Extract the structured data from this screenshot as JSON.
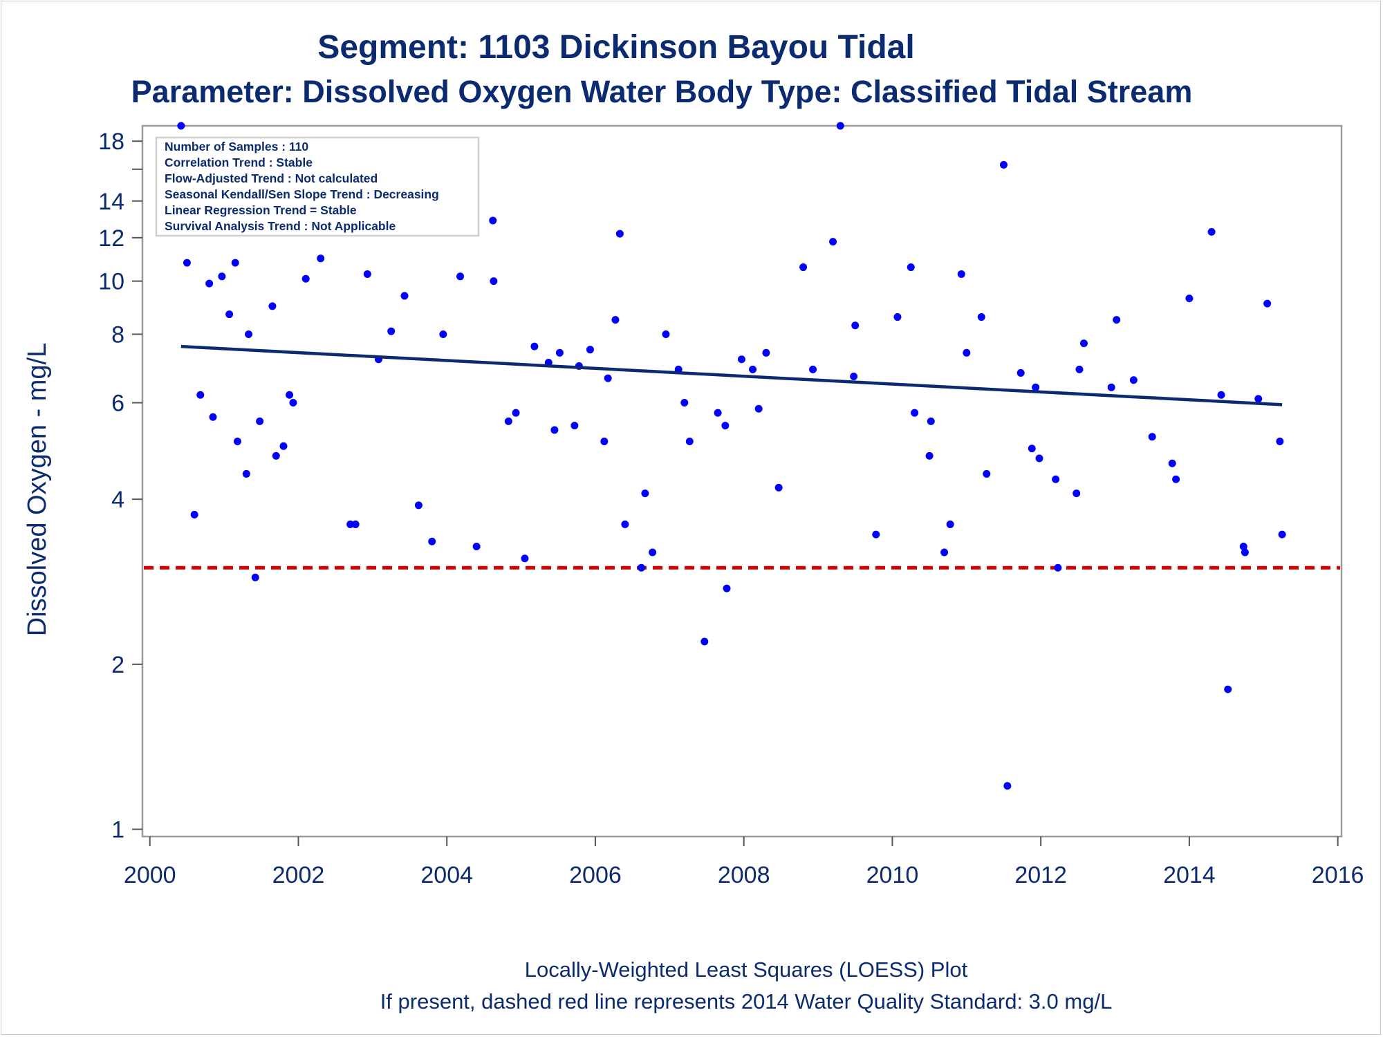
{
  "chart_data": {
    "type": "scatter",
    "title": "Segment: 1103  Dickinson Bayou Tidal",
    "subtitle": "Parameter: Dissolved Oxygen   Water Body Type: Classified Tidal Stream",
    "xlabel": "",
    "ylabel": "Dissolved Oxygen - mg/L",
    "footnotes": [
      "Locally-Weighted Least Squares (LOESS) Plot",
      "If present, dashed red line represents 2014 Water Quality Standard: 3.0 mg/L"
    ],
    "x_ticks": [
      2000,
      2002,
      2004,
      2006,
      2008,
      2010,
      2012,
      2014,
      2016
    ],
    "y_ticks": [
      1,
      2,
      4,
      6,
      8,
      10,
      12,
      14,
      18
    ],
    "y_minor_ticks": [
      16
    ],
    "xlim": [
      1999.9,
      2016.05
    ],
    "ylim": [
      0.97,
      19.2
    ],
    "y_scale": "log",
    "grid": false,
    "marker_color": "#0000ff",
    "trend_color": "#0b2a6f",
    "standard_color": "#d60000",
    "stats_box": [
      "Number of Samples : 110",
      "Correlation Trend : Stable",
      "Flow-Adjusted Trend : Not calculated",
      "Seasonal Kendall/Sen Slope Trend : Decreasing",
      "Linear Regression Trend = Stable",
      "Survival Analysis Trend : Not Applicable"
    ],
    "stats_box_position": "top-left",
    "standard_line": {
      "y": 3.0,
      "style": "dashed"
    },
    "trend_line": {
      "x": [
        2000.42,
        2015.25
      ],
      "y": [
        7.6,
        5.95
      ]
    },
    "series": [
      {
        "type": "scatter",
        "points": [
          [
            2000.42,
            19.2
          ],
          [
            2000.5,
            10.8
          ],
          [
            2000.6,
            3.75
          ],
          [
            2000.68,
            6.2
          ],
          [
            2000.8,
            9.9
          ],
          [
            2000.85,
            5.65
          ],
          [
            2000.97,
            10.2
          ],
          [
            2001.07,
            8.7
          ],
          [
            2001.15,
            10.8
          ],
          [
            2001.18,
            5.1
          ],
          [
            2001.3,
            4.45
          ],
          [
            2001.33,
            8.0
          ],
          [
            2001.42,
            2.88
          ],
          [
            2001.48,
            5.55
          ],
          [
            2001.65,
            9.0
          ],
          [
            2001.7,
            4.8
          ],
          [
            2001.8,
            5.0
          ],
          [
            2001.88,
            6.2
          ],
          [
            2001.93,
            6.0
          ],
          [
            2002.1,
            10.1
          ],
          [
            2002.3,
            11.0
          ],
          [
            2002.7,
            3.6
          ],
          [
            2002.77,
            3.6
          ],
          [
            2002.93,
            10.3
          ],
          [
            2003.08,
            7.2
          ],
          [
            2003.25,
            8.1
          ],
          [
            2003.43,
            9.4
          ],
          [
            2003.62,
            3.9
          ],
          [
            2003.8,
            3.35
          ],
          [
            2003.95,
            8.0
          ],
          [
            2004.4,
            3.28
          ],
          [
            2004.18,
            10.2
          ],
          [
            2004.62,
            12.9
          ],
          [
            2004.63,
            10.0
          ],
          [
            2004.83,
            5.55
          ],
          [
            2004.93,
            5.75
          ],
          [
            2005.05,
            3.12
          ],
          [
            2005.18,
            7.6
          ],
          [
            2005.37,
            7.1
          ],
          [
            2005.45,
            5.35
          ],
          [
            2005.52,
            7.4
          ],
          [
            2005.72,
            5.45
          ],
          [
            2005.78,
            7.0
          ],
          [
            2005.93,
            7.5
          ],
          [
            2006.12,
            5.1
          ],
          [
            2006.17,
            6.65
          ],
          [
            2006.27,
            8.5
          ],
          [
            2006.33,
            12.2
          ],
          [
            2006.4,
            3.6
          ],
          [
            2006.62,
            3.0
          ],
          [
            2006.67,
            4.1
          ],
          [
            2006.77,
            3.2
          ],
          [
            2006.95,
            8.0
          ],
          [
            2007.12,
            6.9
          ],
          [
            2007.2,
            6.0
          ],
          [
            2007.27,
            5.1
          ],
          [
            2007.47,
            2.2
          ],
          [
            2007.65,
            5.75
          ],
          [
            2007.75,
            5.45
          ],
          [
            2007.77,
            2.75
          ],
          [
            2007.97,
            7.2
          ],
          [
            2008.12,
            6.9
          ],
          [
            2008.2,
            5.85
          ],
          [
            2008.3,
            7.4
          ],
          [
            2008.47,
            4.2
          ],
          [
            2008.8,
            10.6
          ],
          [
            2008.93,
            6.9
          ],
          [
            2009.2,
            11.8
          ],
          [
            2009.3,
            19.2
          ],
          [
            2009.48,
            6.7
          ],
          [
            2009.5,
            8.3
          ],
          [
            2009.78,
            3.45
          ],
          [
            2010.07,
            8.6
          ],
          [
            2010.25,
            10.6
          ],
          [
            2010.3,
            5.75
          ],
          [
            2010.5,
            4.8
          ],
          [
            2010.52,
            5.55
          ],
          [
            2010.7,
            3.2
          ],
          [
            2010.78,
            3.6
          ],
          [
            2010.93,
            10.3
          ],
          [
            2011.0,
            7.4
          ],
          [
            2011.2,
            8.6
          ],
          [
            2011.27,
            4.45
          ],
          [
            2011.5,
            16.3
          ],
          [
            2011.55,
            1.2
          ],
          [
            2011.73,
            6.8
          ],
          [
            2011.88,
            4.95
          ],
          [
            2011.93,
            6.4
          ],
          [
            2011.98,
            4.75
          ],
          [
            2012.2,
            4.35
          ],
          [
            2012.23,
            3.0
          ],
          [
            2012.48,
            4.1
          ],
          [
            2012.52,
            6.9
          ],
          [
            2012.58,
            7.7
          ],
          [
            2012.95,
            6.4
          ],
          [
            2013.02,
            8.5
          ],
          [
            2013.25,
            6.6
          ],
          [
            2013.5,
            5.2
          ],
          [
            2013.77,
            4.65
          ],
          [
            2013.82,
            4.35
          ],
          [
            2014.0,
            9.3
          ],
          [
            2014.3,
            12.3
          ],
          [
            2014.43,
            6.2
          ],
          [
            2014.52,
            1.8
          ],
          [
            2014.73,
            3.28
          ],
          [
            2014.75,
            3.2
          ],
          [
            2014.93,
            6.1
          ],
          [
            2015.05,
            9.1
          ],
          [
            2015.22,
            5.1
          ],
          [
            2015.25,
            3.45
          ]
        ]
      }
    ]
  }
}
